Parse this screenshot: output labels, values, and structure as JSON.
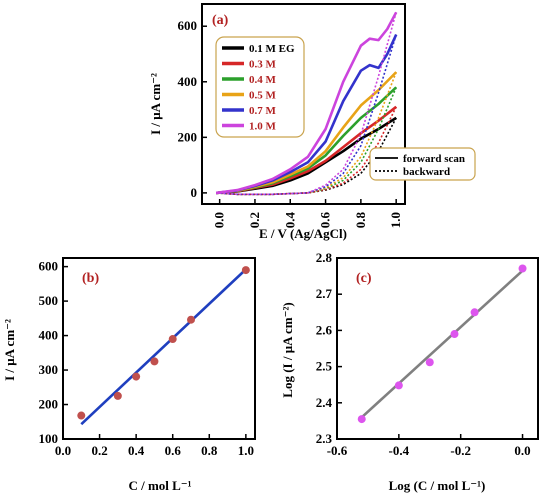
{
  "chart_data": [
    {
      "panel": "(a)",
      "type": "line",
      "xlabel": "E / V (Ag/AgCl)",
      "ylabel": "I / μA cm⁻²",
      "xlim": [
        -0.1,
        1.05
      ],
      "ylim": [
        -40,
        680
      ],
      "xticks": [
        "0.0",
        "0.2",
        "0.4",
        "0.6",
        "0.8",
        "1.0"
      ],
      "xtick_values": [
        0.0,
        0.2,
        0.4,
        0.6,
        0.8,
        1.0
      ],
      "yticks": [
        "0",
        "200",
        "400",
        "600"
      ],
      "ytick_values": [
        0,
        200,
        400,
        600
      ],
      "legend": {
        "placement": "top-left",
        "labels_color": "#b22222"
      },
      "style_legend": {
        "placement": "bottom-right",
        "entries": [
          {
            "label": "forward scan",
            "style": "solid"
          },
          {
            "label": "backward",
            "style": "dotted"
          }
        ]
      },
      "series": [
        {
          "name": "0.1 M EG",
          "color": "#000000",
          "forward": [
            [
              -0.02,
              0
            ],
            [
              0.1,
              5
            ],
            [
              0.2,
              15
            ],
            [
              0.3,
              25
            ],
            [
              0.4,
              45
            ],
            [
              0.5,
              70
            ],
            [
              0.6,
              110
            ],
            [
              0.7,
              150
            ],
            [
              0.8,
              195
            ],
            [
              0.9,
              230
            ],
            [
              1.0,
              270
            ]
          ],
          "backward": [
            [
              1.0,
              270
            ],
            [
              0.9,
              150
            ],
            [
              0.8,
              70
            ],
            [
              0.7,
              30
            ],
            [
              0.6,
              10
            ],
            [
              0.5,
              0
            ],
            [
              0.3,
              -5
            ],
            [
              0.1,
              -5
            ],
            [
              -0.02,
              0
            ]
          ]
        },
        {
          "name": "0.3 M",
          "color": "#d62728",
          "forward": [
            [
              -0.02,
              0
            ],
            [
              0.1,
              6
            ],
            [
              0.2,
              18
            ],
            [
              0.3,
              30
            ],
            [
              0.4,
              52
            ],
            [
              0.5,
              78
            ],
            [
              0.6,
              115
            ],
            [
              0.7,
              165
            ],
            [
              0.8,
              215
            ],
            [
              0.9,
              260
            ],
            [
              1.0,
              310
            ]
          ],
          "backward": [
            [
              1.0,
              310
            ],
            [
              0.9,
              180
            ],
            [
              0.8,
              85
            ],
            [
              0.7,
              35
            ],
            [
              0.6,
              12
            ],
            [
              0.5,
              0
            ],
            [
              0.3,
              -5
            ],
            [
              0.1,
              -5
            ],
            [
              -0.02,
              0
            ]
          ]
        },
        {
          "name": "0.4 M",
          "color": "#2ca02c",
          "forward": [
            [
              -0.02,
              0
            ],
            [
              0.1,
              7
            ],
            [
              0.2,
              20
            ],
            [
              0.3,
              35
            ],
            [
              0.4,
              60
            ],
            [
              0.5,
              88
            ],
            [
              0.6,
              135
            ],
            [
              0.7,
              205
            ],
            [
              0.8,
              270
            ],
            [
              0.9,
              320
            ],
            [
              1.0,
              380
            ]
          ],
          "backward": [
            [
              1.0,
              380
            ],
            [
              0.9,
              230
            ],
            [
              0.8,
              110
            ],
            [
              0.7,
              45
            ],
            [
              0.6,
              15
            ],
            [
              0.5,
              0
            ],
            [
              0.3,
              -5
            ],
            [
              0.1,
              -5
            ],
            [
              -0.02,
              0
            ]
          ]
        },
        {
          "name": "0.5 M",
          "color": "#e8a317",
          "forward": [
            [
              -0.02,
              0
            ],
            [
              0.1,
              8
            ],
            [
              0.2,
              22
            ],
            [
              0.3,
              38
            ],
            [
              0.4,
              66
            ],
            [
              0.5,
              95
            ],
            [
              0.6,
              150
            ],
            [
              0.7,
              235
            ],
            [
              0.8,
              315
            ],
            [
              0.9,
              370
            ],
            [
              1.0,
              435
            ]
          ],
          "backward": [
            [
              1.0,
              435
            ],
            [
              0.9,
              270
            ],
            [
              0.8,
              130
            ],
            [
              0.7,
              55
            ],
            [
              0.6,
              18
            ],
            [
              0.5,
              0
            ],
            [
              0.3,
              -5
            ],
            [
              0.1,
              -5
            ],
            [
              -0.02,
              0
            ]
          ]
        },
        {
          "name": "0.7 M",
          "color": "#3333cc",
          "forward": [
            [
              -0.02,
              0
            ],
            [
              0.1,
              9
            ],
            [
              0.2,
              25
            ],
            [
              0.3,
              45
            ],
            [
              0.4,
              75
            ],
            [
              0.5,
              110
            ],
            [
              0.6,
              185
            ],
            [
              0.7,
              330
            ],
            [
              0.8,
              440
            ],
            [
              0.85,
              460
            ],
            [
              0.9,
              450
            ],
            [
              0.95,
              500
            ],
            [
              1.0,
              570
            ]
          ],
          "backward": [
            [
              1.0,
              570
            ],
            [
              0.9,
              360
            ],
            [
              0.8,
              170
            ],
            [
              0.7,
              70
            ],
            [
              0.6,
              22
            ],
            [
              0.5,
              0
            ],
            [
              0.3,
              -5
            ],
            [
              0.1,
              -5
            ],
            [
              -0.02,
              0
            ]
          ]
        },
        {
          "name": "1.0 M",
          "color": "#cc44dd",
          "forward": [
            [
              -0.02,
              0
            ],
            [
              0.1,
              10
            ],
            [
              0.2,
              28
            ],
            [
              0.3,
              50
            ],
            [
              0.4,
              85
            ],
            [
              0.5,
              130
            ],
            [
              0.6,
              230
            ],
            [
              0.7,
              400
            ],
            [
              0.8,
              530
            ],
            [
              0.85,
              555
            ],
            [
              0.9,
              550
            ],
            [
              0.95,
              590
            ],
            [
              1.0,
              650
            ]
          ],
          "backward": [
            [
              1.0,
              650
            ],
            [
              0.9,
              420
            ],
            [
              0.8,
              210
            ],
            [
              0.7,
              85
            ],
            [
              0.6,
              28
            ],
            [
              0.5,
              0
            ],
            [
              0.3,
              -5
            ],
            [
              0.1,
              -5
            ],
            [
              -0.02,
              0
            ]
          ]
        }
      ]
    },
    {
      "panel": "(b)",
      "type": "scatter",
      "xlabel": "C / mol L⁻¹",
      "ylabel": "I / μA cm⁻²",
      "xlim": [
        0.0,
        1.05
      ],
      "ylim": [
        100,
        625
      ],
      "xticks": [
        "0.0",
        "0.2",
        "0.4",
        "0.6",
        "0.8",
        "1.0"
      ],
      "xtick_values": [
        0.0,
        0.2,
        0.4,
        0.6,
        0.8,
        1.0
      ],
      "yticks": [
        "100",
        "200",
        "300",
        "400",
        "500",
        "600"
      ],
      "ytick_values": [
        100,
        200,
        300,
        400,
        500,
        600
      ],
      "points": {
        "x": [
          0.1,
          0.3,
          0.4,
          0.5,
          0.6,
          0.7,
          1.0
        ],
        "y": [
          168,
          225,
          281,
          325,
          390,
          446,
          590
        ],
        "color": "#c0504d"
      },
      "fit": {
        "x": [
          0.1,
          1.0
        ],
        "y": [
          143,
          592
        ],
        "color": "#1f3fbf"
      }
    },
    {
      "panel": "(c)",
      "type": "scatter",
      "xlabel": "Log (C / mol L⁻¹)",
      "ylabel": "Log (I / μA cm⁻²)",
      "xlim": [
        -0.6,
        0.05
      ],
      "ylim": [
        2.3,
        2.8
      ],
      "xticks": [
        "-0.6",
        "-0.4",
        "-0.2",
        "0.0"
      ],
      "xtick_values": [
        -0.6,
        -0.4,
        -0.2,
        0.0
      ],
      "yticks": [
        "2.3",
        "2.4",
        "2.5",
        "2.6",
        "2.7",
        "2.8"
      ],
      "ytick_values": [
        2.3,
        2.4,
        2.5,
        2.6,
        2.7,
        2.8
      ],
      "points": {
        "x": [
          -0.52,
          -0.4,
          -0.3,
          -0.22,
          -0.155,
          0.0
        ],
        "y": [
          2.355,
          2.448,
          2.512,
          2.59,
          2.65,
          2.771
        ],
        "color": "#dd55ee"
      },
      "fit": {
        "x": [
          -0.52,
          0.0
        ],
        "y": [
          2.36,
          2.765
        ],
        "color": "#808080"
      }
    }
  ]
}
